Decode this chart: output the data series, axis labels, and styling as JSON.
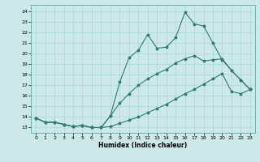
{
  "xlabel": "Humidex (Indice chaleur)",
  "background_color": "#cce8e8",
  "line_color": "#2e7d6e",
  "xlim": [
    -0.5,
    23.5
  ],
  "ylim": [
    12.5,
    24.6
  ],
  "xticks": [
    0,
    1,
    2,
    3,
    4,
    5,
    6,
    7,
    8,
    9,
    10,
    11,
    12,
    13,
    14,
    15,
    16,
    17,
    18,
    19,
    20,
    21,
    22,
    23
  ],
  "yticks": [
    13,
    14,
    15,
    16,
    17,
    18,
    19,
    20,
    21,
    22,
    23,
    24
  ],
  "grid_color": "#a8d8d8",
  "line1_x": [
    0,
    1,
    2,
    3,
    4,
    5,
    6,
    7,
    8,
    9,
    10,
    11,
    12,
    13,
    14,
    15,
    16,
    17,
    18,
    19,
    20,
    21,
    22,
    23
  ],
  "line1_y": [
    13.9,
    13.5,
    13.5,
    13.3,
    13.1,
    13.2,
    13.0,
    13.0,
    14.1,
    17.3,
    19.6,
    20.3,
    21.8,
    20.5,
    20.6,
    21.5,
    23.9,
    22.8,
    22.6,
    21.0,
    19.4,
    18.4,
    17.5,
    16.6
  ],
  "line2_x": [
    0,
    1,
    2,
    3,
    4,
    5,
    6,
    7,
    8,
    9,
    10,
    11,
    12,
    13,
    14,
    15,
    16,
    17,
    18,
    19,
    20,
    21,
    22,
    23
  ],
  "line2_y": [
    13.9,
    13.5,
    13.5,
    13.3,
    13.1,
    13.2,
    13.0,
    13.0,
    14.1,
    15.3,
    16.2,
    17.0,
    17.6,
    18.1,
    18.5,
    19.1,
    19.5,
    19.8,
    19.3,
    19.4,
    19.5,
    18.4,
    17.5,
    16.6
  ],
  "line3_x": [
    0,
    1,
    2,
    3,
    4,
    5,
    6,
    7,
    8,
    9,
    10,
    11,
    12,
    13,
    14,
    15,
    16,
    17,
    18,
    19,
    20,
    21,
    22,
    23
  ],
  "line3_y": [
    13.9,
    13.5,
    13.5,
    13.3,
    13.1,
    13.2,
    13.0,
    13.0,
    13.1,
    13.4,
    13.7,
    14.0,
    14.4,
    14.8,
    15.2,
    15.7,
    16.2,
    16.6,
    17.1,
    17.6,
    18.1,
    16.4,
    16.2,
    16.6
  ]
}
